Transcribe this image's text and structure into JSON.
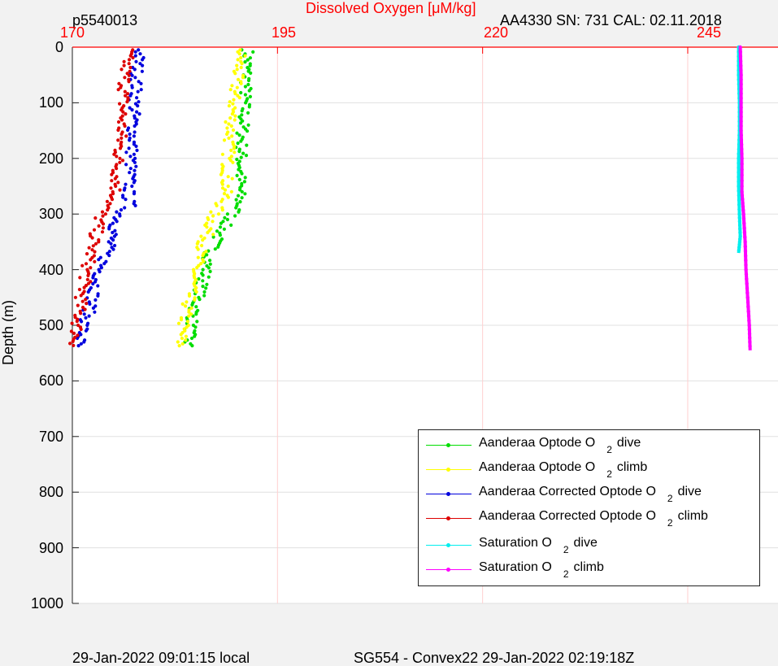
{
  "chart_data": {
    "type": "scatter",
    "title": "Dissolved Oxygen [μM/kg]",
    "top_left_label": "p5540013",
    "top_right_label": "AA4330   SN: 731   CAL: 02.11.2018",
    "ylabel": "Depth (m)",
    "xlim": [
      170,
      256
    ],
    "ylim": [
      0,
      1000
    ],
    "x_ticks": [
      "170",
      "195",
      "220",
      "245"
    ],
    "y_ticks": [
      "0",
      "100",
      "200",
      "300",
      "400",
      "500",
      "600",
      "700",
      "800",
      "900",
      "1000"
    ],
    "y_reversed": true,
    "grid": true,
    "legend_position": "bottom-right",
    "series": [
      {
        "name": "Aanderaa Optode O2 dive",
        "label": "Aanderaa Optode O",
        "sub": "2",
        "suffix": "dive",
        "color": "#00dd00",
        "points": [
          [
            191.4,
            5
          ],
          [
            191.3,
            30
          ],
          [
            191.2,
            60
          ],
          [
            191.0,
            100
          ],
          [
            190.8,
            140
          ],
          [
            190.6,
            180
          ],
          [
            190.5,
            220
          ],
          [
            190.4,
            260
          ],
          [
            190.3,
            285
          ],
          [
            189.5,
            300
          ],
          [
            188.6,
            320
          ],
          [
            187.6,
            345
          ],
          [
            186.8,
            370
          ],
          [
            186.3,
            400
          ],
          [
            185.7,
            430
          ],
          [
            185.1,
            460
          ],
          [
            184.6,
            490
          ],
          [
            184.2,
            520
          ],
          [
            184.0,
            540
          ]
        ]
      },
      {
        "name": "Aanderaa Optode O2 climb",
        "label": "Aanderaa Optode O",
        "sub": "2",
        "suffix": "climb",
        "color": "#ffff00",
        "points": [
          [
            190.6,
            5
          ],
          [
            190.2,
            40
          ],
          [
            189.8,
            80
          ],
          [
            189.5,
            120
          ],
          [
            189.2,
            160
          ],
          [
            189.0,
            200
          ],
          [
            188.8,
            240
          ],
          [
            188.6,
            270
          ],
          [
            188.0,
            285
          ],
          [
            187.2,
            300
          ],
          [
            186.6,
            330
          ],
          [
            185.8,
            360
          ],
          [
            185.0,
            400
          ],
          [
            184.4,
            440
          ],
          [
            183.8,
            480
          ],
          [
            183.4,
            510
          ],
          [
            183.1,
            540
          ]
        ]
      },
      {
        "name": "Aanderaa Corrected Optode O2 dive",
        "label": "Aanderaa Corrected Optode O",
        "sub": "2",
        "suffix": "dive",
        "color": "#0000dd",
        "points": [
          [
            178.2,
            5
          ],
          [
            177.9,
            40
          ],
          [
            177.7,
            80
          ],
          [
            177.5,
            120
          ],
          [
            177.4,
            160
          ],
          [
            177.2,
            200
          ],
          [
            177.0,
            240
          ],
          [
            176.8,
            270
          ],
          [
            177.0,
            285
          ],
          [
            175.8,
            300
          ],
          [
            175.0,
            330
          ],
          [
            174.4,
            360
          ],
          [
            173.4,
            400
          ],
          [
            172.7,
            440
          ],
          [
            171.9,
            480
          ],
          [
            171.2,
            510
          ],
          [
            170.7,
            540
          ]
        ]
      },
      {
        "name": "Aanderaa Corrected Optode O2 climb",
        "label": "Aanderaa Corrected Optode O",
        "sub": "2",
        "suffix": "climb",
        "color": "#dd0000",
        "points": [
          [
            176.8,
            5
          ],
          [
            176.5,
            40
          ],
          [
            176.3,
            80
          ],
          [
            176.1,
            120
          ],
          [
            175.9,
            160
          ],
          [
            175.6,
            200
          ],
          [
            175.4,
            240
          ],
          [
            175.2,
            270
          ],
          [
            174.2,
            285
          ],
          [
            173.5,
            300
          ],
          [
            172.6,
            350
          ],
          [
            171.8,
            400
          ],
          [
            171.1,
            450
          ],
          [
            170.6,
            500
          ],
          [
            170.3,
            540
          ]
        ]
      },
      {
        "name": "Saturation O2 dive",
        "label": "Saturation O",
        "sub": "2",
        "suffix": "dive",
        "color": "#00eeee",
        "points": [
          [
            251.2,
            0
          ],
          [
            251.2,
            50
          ],
          [
            251.3,
            100
          ],
          [
            251.3,
            150
          ],
          [
            251.2,
            200
          ],
          [
            251.2,
            250
          ],
          [
            251.3,
            300
          ],
          [
            251.4,
            340
          ],
          [
            251.2,
            370
          ]
        ]
      },
      {
        "name": "Saturation O2 climb",
        "label": "Saturation O",
        "sub": "2",
        "suffix": "climb",
        "color": "#ff00ff",
        "points": [
          [
            251.4,
            0
          ],
          [
            251.5,
            50
          ],
          [
            251.5,
            100
          ],
          [
            251.5,
            150
          ],
          [
            251.6,
            200
          ],
          [
            251.6,
            260
          ],
          [
            251.8,
            300
          ],
          [
            252.0,
            350
          ],
          [
            252.1,
            400
          ],
          [
            252.3,
            450
          ],
          [
            252.5,
            500
          ],
          [
            252.6,
            545
          ]
        ]
      }
    ]
  },
  "footer": {
    "left": "29-Jan-2022 09:01:15 local",
    "center": "SG554 - Convex22 29-Jan-2022 02:19:18Z"
  },
  "colors": {
    "axis_top": "#ff0000",
    "grid": "#ffd0d0",
    "grid_h": "#e0e0e0"
  }
}
